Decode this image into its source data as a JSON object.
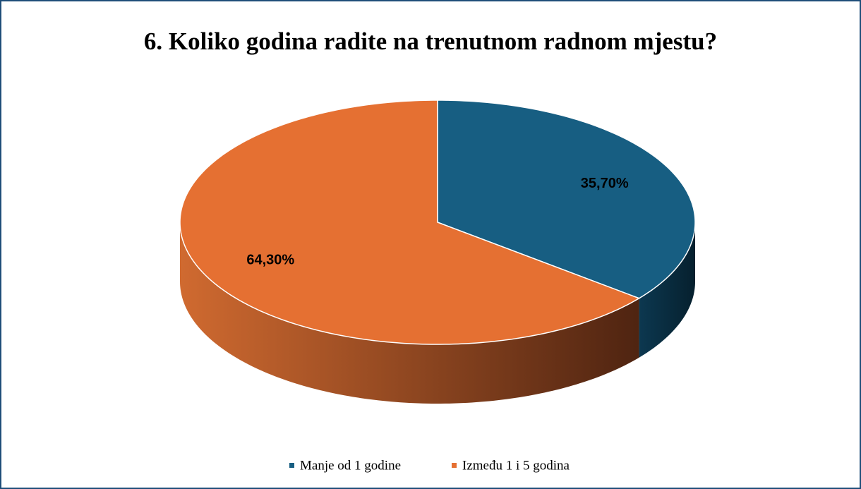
{
  "chart_data": {
    "type": "pie",
    "title": "6. Koliko godina radite na trenutnom radnom mjestu?",
    "categories": [
      "Manje od 1 godine",
      "Između 1 i 5 godina"
    ],
    "values": [
      35.7,
      64.3
    ],
    "value_labels": [
      "35,70%",
      "64,30%"
    ],
    "colors": [
      "#175e82",
      "#e57032"
    ],
    "legend": "bottom"
  }
}
